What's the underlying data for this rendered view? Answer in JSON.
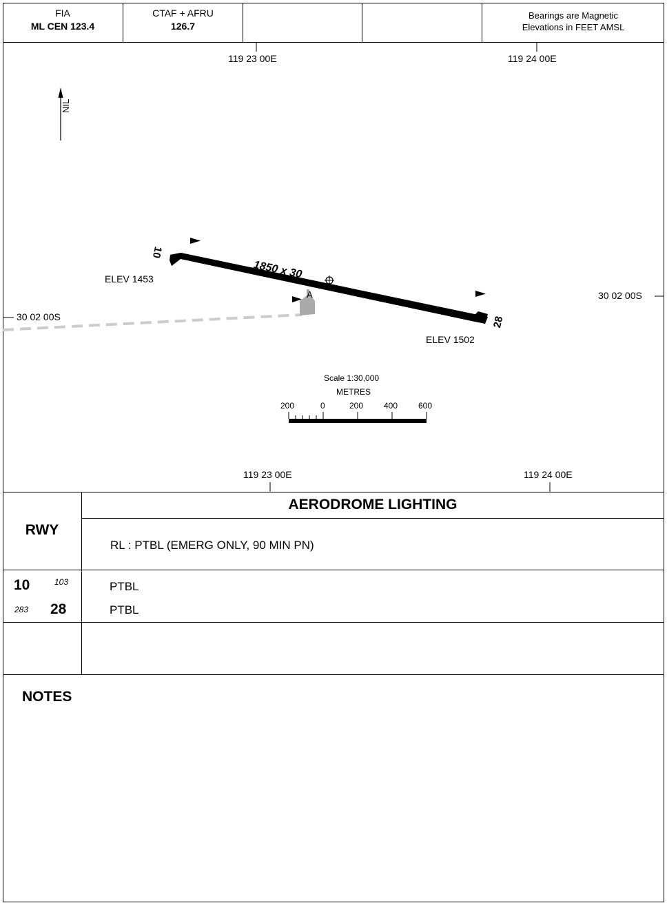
{
  "header": {
    "cell1_line1": "FIA",
    "cell1_line2": "ML CEN 123.4",
    "cell2_line1": "CTAF + AFRU",
    "cell2_line2": "126.7",
    "cell5_line1": "Bearings are Magnetic",
    "cell5_line2": "Elevations in FEET AMSL"
  },
  "map": {
    "lon_top_left": "119 23 00E",
    "lon_top_right": "119 24 00E",
    "lon_bottom_left": "119 23 00E",
    "lon_bottom_right": "119 24 00E",
    "lat_left": "30 02 00S",
    "lat_right": "30 02 00S",
    "north_label": "NIL",
    "runway_dims": "1850 x 30",
    "rwy_10_label": "10",
    "rwy_28_label": "28",
    "elev_10": "ELEV 1453",
    "elev_28": "ELEV 1502",
    "apron_label": "A",
    "scale_title": "Scale 1:30,000",
    "scale_units": "METRES",
    "scale_ticks": [
      "200",
      "0",
      "200",
      "400",
      "600"
    ]
  },
  "lighting": {
    "title": "AERODROME LIGHTING",
    "rwy_header": "RWY",
    "rl_text": "RL : PTBL (EMERG ONLY, 90 MIN PN)",
    "rows": [
      {
        "rwy": "10",
        "bearing": "103",
        "value": "PTBL"
      },
      {
        "rwy": "28",
        "bearing": "283",
        "value": "PTBL"
      }
    ]
  },
  "notes": {
    "title": "NOTES"
  },
  "colors": {
    "runway": "#000000",
    "apron": "#aaaaaa",
    "track": "#cccccc"
  }
}
